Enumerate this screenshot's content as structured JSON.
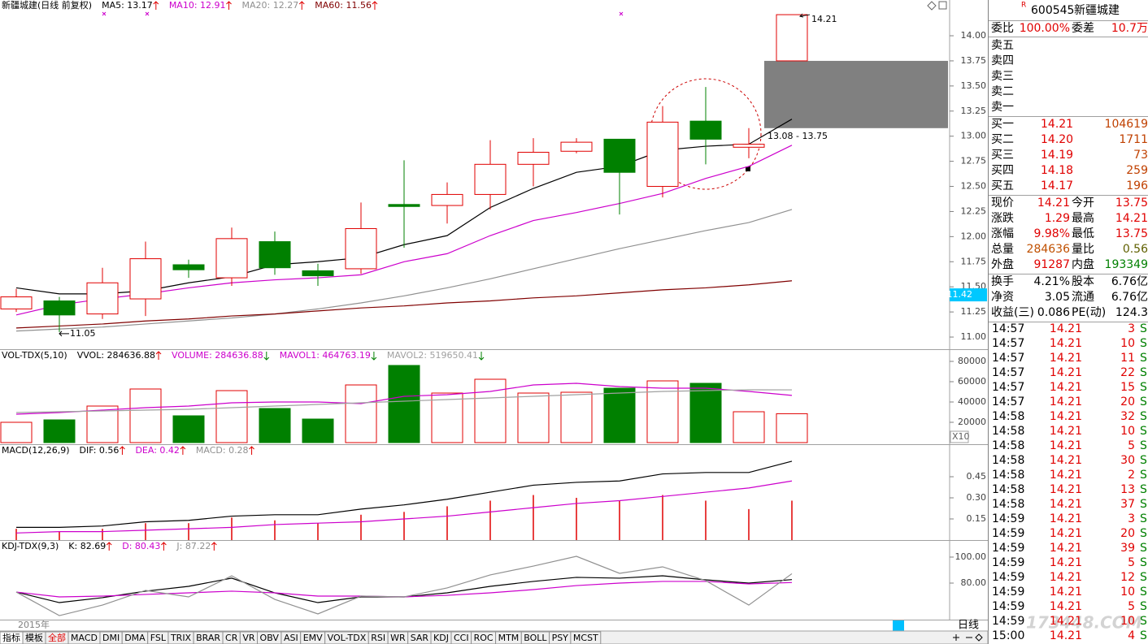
{
  "chart_data": [
    {
      "type": "candlestick",
      "title": "新疆城建(日线 前复权)",
      "open": [
        11.28,
        11.36,
        11.23,
        11.38,
        11.72,
        11.59,
        11.95,
        11.66,
        11.68,
        12.32,
        12.31,
        12.42,
        12.72,
        12.85,
        12.97,
        12.5,
        13.15,
        12.89,
        13.75
      ],
      "high": [
        11.48,
        11.4,
        11.69,
        11.95,
        11.77,
        12.09,
        12.05,
        11.73,
        12.34,
        12.76,
        12.54,
        12.96,
        12.98,
        12.98,
        12.97,
        13.3,
        13.49,
        13.08,
        14.21
      ],
      "low": [
        11.25,
        11.05,
        11.18,
        11.21,
        11.59,
        11.51,
        11.62,
        11.51,
        11.63,
        11.89,
        12.13,
        12.27,
        12.5,
        12.83,
        12.22,
        12.39,
        12.72,
        12.78,
        13.75
      ],
      "close": [
        11.4,
        11.22,
        11.54,
        11.78,
        11.67,
        11.98,
        11.69,
        11.61,
        12.08,
        12.3,
        12.42,
        12.72,
        12.84,
        12.94,
        12.64,
        13.14,
        12.97,
        12.92,
        14.21
      ],
      "up_color": "#e00000",
      "down_color": "#008000",
      "series": [
        {
          "name": "MA5: 13.17",
          "color": "#000000",
          "arrow": "up",
          "values": [
            11.49,
            11.43,
            11.43,
            11.46,
            11.54,
            11.6,
            11.72,
            11.75,
            11.79,
            11.92,
            12.01,
            12.29,
            12.48,
            12.64,
            12.7,
            12.86,
            12.9,
            12.92,
            13.17
          ]
        },
        {
          "name": "MA10: 12.91",
          "color": "#cc00cc",
          "arrow": "up",
          "values": [
            11.22,
            11.32,
            11.38,
            11.43,
            11.49,
            11.54,
            11.57,
            11.59,
            11.62,
            11.75,
            11.83,
            12.01,
            12.16,
            12.24,
            12.33,
            12.43,
            12.58,
            12.7,
            12.91
          ]
        },
        {
          "name": "MA20: 12.27",
          "color": "#909090",
          "arrow": "up",
          "values": [
            11.06,
            11.08,
            11.1,
            11.13,
            11.16,
            11.19,
            11.23,
            11.28,
            11.34,
            11.41,
            11.49,
            11.58,
            11.68,
            11.78,
            11.88,
            11.97,
            12.06,
            12.14,
            12.27
          ]
        },
        {
          "name": "MA60: 11.56",
          "color": "#800000",
          "arrow": "up",
          "values": [
            11.09,
            11.11,
            11.13,
            11.16,
            11.18,
            11.21,
            11.23,
            11.26,
            11.29,
            11.31,
            11.34,
            11.36,
            11.39,
            11.41,
            11.44,
            11.47,
            11.49,
            11.52,
            11.56
          ]
        }
      ],
      "gap": {
        "low": 13.08,
        "high": 13.75,
        "label": "13.08 - 13.75"
      },
      "cursor_price": 11.42,
      "ylim": [
        10.879,
        14.356
      ],
      "yticks": [
        {
          "value": 11,
          "label": "11.00"
        },
        {
          "value": 11.25,
          "label": "11.25"
        },
        {
          "value": 11.5,
          "label": "11.50"
        },
        {
          "value": 11.75,
          "label": "11.75"
        },
        {
          "value": 12,
          "label": "12.00"
        },
        {
          "value": 12.25,
          "label": "12.25"
        },
        {
          "value": 12.5,
          "label": "12.50"
        },
        {
          "value": 12.75,
          "label": "12.75"
        },
        {
          "value": 13,
          "label": "13.00"
        },
        {
          "value": 13.25,
          "label": "13.25"
        },
        {
          "value": 13.5,
          "label": "13.50"
        },
        {
          "value": 13.75,
          "label": "13.75"
        },
        {
          "value": 14,
          "label": "14.00"
        }
      ]
    },
    {
      "type": "bar",
      "title": "VOL-TDX(5,10)",
      "legend": [
        {
          "text": "VVOL: 284636.88",
          "color": "#000000",
          "arrow": "up"
        },
        {
          "text": "VOLUME: 284636.88",
          "color": "#cc00cc",
          "arrow": "down"
        }
      ],
      "values": [
        20000,
        22400,
        36000,
        52800,
        26400,
        51200,
        33600,
        23200,
        56800,
        76000,
        48800,
        62400,
        48800,
        49600,
        53600,
        60800,
        58400,
        30400,
        28464
      ],
      "series": [
        {
          "name": "MAVOL1: 464763.19",
          "color": "#cc00cc",
          "arrow": "down",
          "values": [
            28000,
            29600,
            32000,
            34400,
            36000,
            39200,
            40000,
            40000,
            38400,
            45600,
            47200,
            50400,
            56800,
            58400,
            55200,
            53600,
            53600,
            50400,
            46476
          ]
        },
        {
          "name": "MAVOL2: 519650.41",
          "color": "#a0a0a0",
          "arrow": "down",
          "values": [
            29600,
            30400,
            31200,
            32000,
            32800,
            34400,
            36000,
            37600,
            39200,
            40800,
            42400,
            44000,
            45600,
            47200,
            48800,
            50400,
            51200,
            52000,
            51965
          ]
        }
      ],
      "unit_label": "X10",
      "ylim": [
        -1600,
        92000
      ],
      "yticks": [
        20000,
        40000,
        60000,
        80000
      ]
    },
    {
      "type": "macd",
      "title": "MACD(12,26,9)",
      "series": [
        {
          "name": "DIF: 0.56",
          "color": "#000000",
          "arrow": "up",
          "values": [
            0.09,
            0.09,
            0.1,
            0.13,
            0.14,
            0.17,
            0.18,
            0.18,
            0.22,
            0.25,
            0.29,
            0.34,
            0.39,
            0.41,
            0.42,
            0.47,
            0.48,
            0.48,
            0.56
          ]
        },
        {
          "name": "DEA: 0.42",
          "color": "#cc00cc",
          "arrow": "up",
          "values": [
            0.05,
            0.06,
            0.06,
            0.07,
            0.08,
            0.09,
            0.11,
            0.12,
            0.13,
            0.15,
            0.17,
            0.2,
            0.23,
            0.26,
            0.28,
            0.31,
            0.34,
            0.37,
            0.42
          ]
        }
      ],
      "bars": {
        "name": "MACD: 0.28",
        "color": "#e00000",
        "label_color": "#909090",
        "arrow": "up",
        "values": [
          0.08,
          0.06,
          0.08,
          0.12,
          0.12,
          0.16,
          0.14,
          0.12,
          0.18,
          0.2,
          0.24,
          0.28,
          0.32,
          0.3,
          0.28,
          0.32,
          0.28,
          0.22,
          0.28
        ]
      },
      "ylim": [
        0,
        0.681
      ],
      "yticks": [
        {
          "value": 0.15,
          "label": "0.15"
        },
        {
          "value": 0.3,
          "label": "0.30"
        },
        {
          "value": 0.45,
          "label": "0.45"
        }
      ]
    },
    {
      "type": "line",
      "title": "KDJ-TDX(9,3)",
      "series": [
        {
          "name": "K: 82.69",
          "color": "#000000",
          "arrow": "up",
          "values": [
            73.1,
            65.0,
            68.8,
            73.8,
            77.5,
            83.8,
            72.5,
            65.0,
            69.4,
            69.4,
            72.5,
            77.5,
            81.3,
            84.4,
            83.8,
            85.6,
            82.5,
            80.0,
            82.69
          ]
        },
        {
          "name": "D: 80.43",
          "color": "#cc00cc",
          "arrow": "up",
          "values": [
            73.1,
            69.4,
            70.0,
            71.3,
            72.5,
            73.8,
            72.5,
            70.0,
            70.0,
            69.4,
            70.6,
            72.5,
            75.0,
            78.1,
            80.0,
            81.3,
            81.3,
            79.4,
            80.43
          ]
        },
        {
          "name": "J: 87.22",
          "color": "#909090",
          "arrow": "up",
          "values": [
            73.1,
            55.0,
            63.1,
            74.4,
            69.4,
            85.6,
            67.5,
            56.3,
            70.0,
            69.4,
            76.3,
            86.3,
            93.1,
            100.6,
            87.5,
            92.5,
            81.9,
            63.1,
            87.22
          ]
        }
      ],
      "ylim": [
        51.9,
        113.1
      ],
      "yticks": [
        {
          "value": 80,
          "label": "80.00"
        },
        {
          "value": 100,
          "label": "100.00"
        }
      ]
    }
  ],
  "footer": {
    "year": "2015年",
    "period": "日线",
    "watermark": "173448.COM",
    "tabs": [
      "指标",
      "模板",
      "全部",
      "MACD",
      "DMI",
      "DMA",
      "FSL",
      "TRIX",
      "BRAR",
      "CR",
      "VR",
      "OBV",
      "ASI",
      "EMV",
      "VOL-TDX",
      "RSI",
      "WR",
      "SAR",
      "KDJ",
      "CCI",
      "ROC",
      "MTM",
      "BOLL",
      "PSY",
      "MCST"
    ]
  },
  "quote": {
    "badge": "R",
    "code": "600545",
    "name": "新疆城建",
    "ratio": [
      "委比",
      "100.00%",
      "委差",
      "10.7万"
    ],
    "asks": [
      "卖五",
      "卖四",
      "卖三",
      "卖二",
      "卖一"
    ],
    "bids": [
      [
        "买一",
        "14.21",
        "104619"
      ],
      [
        "买二",
        "14.20",
        "1711"
      ],
      [
        "买三",
        "14.19",
        "73"
      ],
      [
        "买四",
        "14.18",
        "259"
      ],
      [
        "买五",
        "14.17",
        "196"
      ]
    ],
    "stats": [
      {
        "cells": [
          "现价",
          "14.21",
          "今开",
          "13.75"
        ],
        "colors": [
          "#000000",
          "#e00000",
          "#000000",
          "#e00000"
        ]
      },
      {
        "cells": [
          "涨跌",
          "1.29",
          "最高",
          "14.21"
        ],
        "colors": [
          "#000000",
          "#e00000",
          "#000000",
          "#e00000"
        ]
      },
      {
        "cells": [
          "涨幅",
          "9.98%",
          "最低",
          "13.75"
        ],
        "colors": [
          "#000000",
          "#e00000",
          "#000000",
          "#e00000"
        ]
      },
      {
        "cells": [
          "总量",
          "284636",
          "量比",
          "0.56"
        ],
        "colors": [
          "#000000",
          "#c05000",
          "#000000",
          "#606000"
        ]
      },
      {
        "cells": [
          "外盘",
          "91287",
          "内盘",
          "193349"
        ],
        "colors": [
          "#000000",
          "#e00000",
          "#000000",
          "#008000"
        ]
      },
      {
        "cells": [
          "换手",
          "4.21%",
          "股本",
          "6.76亿"
        ],
        "colors": [
          "#000000",
          "#000000",
          "#000000",
          "#000000"
        ]
      },
      {
        "cells": [
          "净资",
          "3.05",
          "流通",
          "6.76亿"
        ],
        "colors": [
          "#000000",
          "#000000",
          "#000000",
          "#000000"
        ]
      },
      {
        "cells": [
          "收益(三)",
          "0.086",
          "PE(动)",
          "124.3"
        ],
        "colors": [
          "#000000",
          "#000000",
          "#000000",
          "#000000"
        ]
      }
    ],
    "trades": [
      [
        "14:57",
        "14.21",
        "3",
        "S"
      ],
      [
        "14:57",
        "14.21",
        "10",
        "S"
      ],
      [
        "14:57",
        "14.21",
        "11",
        "S"
      ],
      [
        "14:57",
        "14.21",
        "22",
        "S"
      ],
      [
        "14:57",
        "14.21",
        "15",
        "S"
      ],
      [
        "14:57",
        "14.21",
        "20",
        "S"
      ],
      [
        "14:58",
        "14.21",
        "32",
        "S"
      ],
      [
        "14:58",
        "14.21",
        "10",
        "S"
      ],
      [
        "14:58",
        "14.21",
        "5",
        "S"
      ],
      [
        "14:58",
        "14.21",
        "30",
        "S"
      ],
      [
        "14:58",
        "14.21",
        "2",
        "S"
      ],
      [
        "14:58",
        "14.21",
        "13",
        "S"
      ],
      [
        "14:58",
        "14.21",
        "37",
        "S"
      ],
      [
        "14:59",
        "14.21",
        "3",
        "S"
      ],
      [
        "14:59",
        "14.21",
        "20",
        "S"
      ],
      [
        "14:59",
        "14.21",
        "39",
        "S"
      ],
      [
        "14:59",
        "14.21",
        "5",
        "S"
      ],
      [
        "14:59",
        "14.21",
        "12",
        "S"
      ],
      [
        "14:59",
        "14.21",
        "10",
        "S"
      ],
      [
        "14:59",
        "14.21",
        "5",
        "S"
      ],
      [
        "14:59",
        "14.21",
        "10",
        "S"
      ],
      [
        "15:00",
        "14.21",
        "4",
        "S"
      ]
    ]
  }
}
